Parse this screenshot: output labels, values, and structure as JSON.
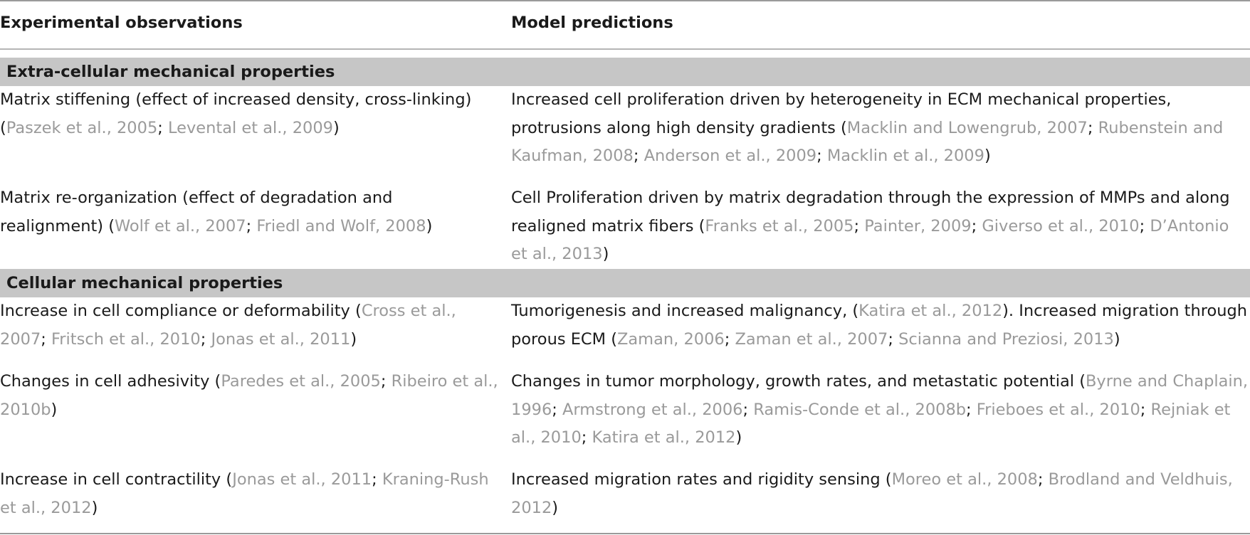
{
  "table": {
    "headers": {
      "left": "Experimental observations",
      "right": "Model predictions"
    },
    "sections": [
      {
        "title": "Extra-cellular mechanical properties",
        "rows": [
          {
            "obs": [
              {
                "t": "Matrix stiffening (effect of increased density, cross-linking) ("
              },
              {
                "t": "Paszek et al., 2005",
                "c": 1
              },
              {
                "t": "; "
              },
              {
                "t": "Levental et al., 2009",
                "c": 1
              },
              {
                "t": ")"
              }
            ],
            "pred": [
              {
                "t": "Increased cell proliferation driven by heterogeneity in ECM mechanical properties, protrusions along high density gradients ("
              },
              {
                "t": "Macklin and Lowengrub, 2007",
                "c": 1
              },
              {
                "t": "; "
              },
              {
                "t": "Rubenstein and Kaufman, 2008",
                "c": 1
              },
              {
                "t": "; "
              },
              {
                "t": "Anderson et al., 2009",
                "c": 1
              },
              {
                "t": "; "
              },
              {
                "t": "Macklin et al., 2009",
                "c": 1
              },
              {
                "t": ")"
              }
            ]
          },
          {
            "obs": [
              {
                "t": "Matrix re-organization (effect of degradation and realignment) ("
              },
              {
                "t": "Wolf et al., 2007",
                "c": 1
              },
              {
                "t": "; "
              },
              {
                "t": "Friedl and Wolf, 2008",
                "c": 1
              },
              {
                "t": ")"
              }
            ],
            "pred": [
              {
                "t": "Cell Proliferation driven by matrix degradation through the expression of MMPs and along realigned matrix fibers ("
              },
              {
                "t": "Franks et al., 2005",
                "c": 1
              },
              {
                "t": "; "
              },
              {
                "t": "Painter, 2009",
                "c": 1
              },
              {
                "t": "; "
              },
              {
                "t": "Giverso et al., 2010",
                "c": 1
              },
              {
                "t": "; "
              },
              {
                "t": "D’Antonio et al., 2013",
                "c": 1
              },
              {
                "t": ")"
              }
            ]
          }
        ]
      },
      {
        "title": "Cellular mechanical properties",
        "rows": [
          {
            "obs": [
              {
                "t": "Increase in cell compliance or deformability ("
              },
              {
                "t": "Cross et al., 2007",
                "c": 1
              },
              {
                "t": "; "
              },
              {
                "t": "Fritsch et al., 2010",
                "c": 1
              },
              {
                "t": "; "
              },
              {
                "t": "Jonas et al., 2011",
                "c": 1
              },
              {
                "t": ")"
              }
            ],
            "pred": [
              {
                "t": "Tumorigenesis and increased malignancy, ("
              },
              {
                "t": "Katira et al., 2012",
                "c": 1
              },
              {
                "t": "). Increased migration through porous ECM ("
              },
              {
                "t": "Zaman, 2006",
                "c": 1
              },
              {
                "t": "; "
              },
              {
                "t": "Zaman et al., 2007",
                "c": 1
              },
              {
                "t": "; "
              },
              {
                "t": "Scianna and Preziosi, 2013",
                "c": 1
              },
              {
                "t": ")"
              }
            ]
          },
          {
            "obs": [
              {
                "t": "Changes in cell adhesivity ("
              },
              {
                "t": "Paredes et al., 2005",
                "c": 1
              },
              {
                "t": "; "
              },
              {
                "t": "Ribeiro et al., 2010b",
                "c": 1
              },
              {
                "t": ")"
              }
            ],
            "pred": [
              {
                "t": "Changes in tumor morphology, growth rates, and metastatic potential ("
              },
              {
                "t": "Byrne and Chaplain, 1996",
                "c": 1
              },
              {
                "t": "; "
              },
              {
                "t": "Armstrong et al., 2006",
                "c": 1
              },
              {
                "t": "; "
              },
              {
                "t": "Ramis-Conde et al., 2008b",
                "c": 1
              },
              {
                "t": "; "
              },
              {
                "t": "Frieboes et al., 2010",
                "c": 1
              },
              {
                "t": "; "
              },
              {
                "t": "Rejniak et al., 2010",
                "c": 1
              },
              {
                "t": "; "
              },
              {
                "t": "Katira et al., 2012",
                "c": 1
              },
              {
                "t": ")"
              }
            ]
          },
          {
            "obs": [
              {
                "t": "Increase in cell contractility ("
              },
              {
                "t": "Jonas et al., 2011",
                "c": 1
              },
              {
                "t": "; "
              },
              {
                "t": "Kraning-Rush et al., 2012",
                "c": 1
              },
              {
                "t": ")"
              }
            ],
            "pred": [
              {
                "t": "Increased migration rates and rigidity sensing ("
              },
              {
                "t": "Moreo et al., 2008",
                "c": 1
              },
              {
                "t": "; "
              },
              {
                "t": "Brodland and Veldhuis, 2012",
                "c": 1
              },
              {
                "t": ")"
              }
            ]
          }
        ]
      }
    ]
  }
}
